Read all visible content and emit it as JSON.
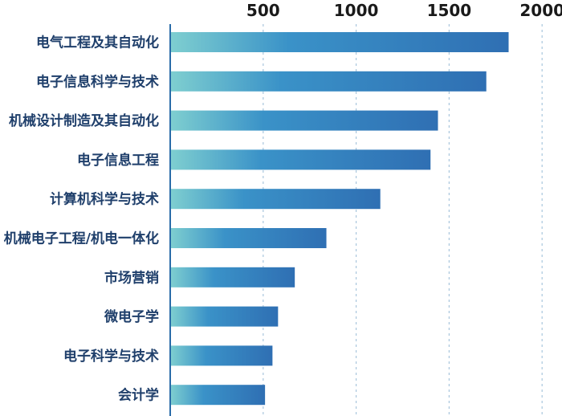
{
  "chart_data": {
    "type": "bar",
    "orientation": "horizontal",
    "categories": [
      "电气工程及其自动化",
      "电子信息科学与技术",
      "机械设计制造及其自动化",
      "电子信息工程",
      "计算机科学与技术",
      "机械电子工程/机电一体化",
      "市场营销",
      "微电子学",
      "电子科学与技术",
      "会计学"
    ],
    "values": [
      1820,
      1700,
      1440,
      1400,
      1130,
      840,
      670,
      580,
      550,
      510
    ],
    "x_ticks": [
      500,
      1000,
      1500,
      2000
    ],
    "xlim": [
      0,
      2100
    ],
    "grid": true,
    "colors": {
      "bar_start": "#7fcfd0",
      "bar_mid": "#3a92c8",
      "bar_end": "#2f6fb3",
      "axis": "#2a6ca8",
      "grid": "#a9c6dd"
    }
  }
}
